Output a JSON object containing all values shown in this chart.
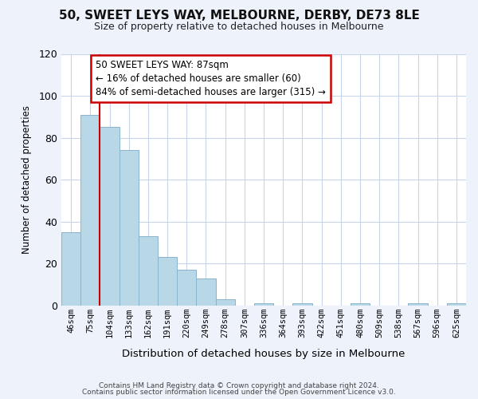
{
  "title": "50, SWEET LEYS WAY, MELBOURNE, DERBY, DE73 8LE",
  "subtitle": "Size of property relative to detached houses in Melbourne",
  "xlabel": "Distribution of detached houses by size in Melbourne",
  "ylabel": "Number of detached properties",
  "bin_labels": [
    "46sqm",
    "75sqm",
    "104sqm",
    "133sqm",
    "162sqm",
    "191sqm",
    "220sqm",
    "249sqm",
    "278sqm",
    "307sqm",
    "336sqm",
    "364sqm",
    "393sqm",
    "422sqm",
    "451sqm",
    "480sqm",
    "509sqm",
    "538sqm",
    "567sqm",
    "596sqm",
    "625sqm"
  ],
  "bar_values": [
    35,
    91,
    85,
    74,
    33,
    23,
    17,
    13,
    3,
    0,
    1,
    0,
    1,
    0,
    0,
    1,
    0,
    0,
    1,
    0,
    1
  ],
  "bar_color": "#b8d8e8",
  "bar_edge_color": "#8ab4cc",
  "marker_line_color": "#cc0000",
  "annotation_line1": "50 SWEET LEYS WAY: 87sqm",
  "annotation_line2": "← 16% of detached houses are smaller (60)",
  "annotation_line3": "84% of semi-detached houses are larger (315) →",
  "annotation_box_color": "#ffffff",
  "annotation_box_edge": "#cc0000",
  "ylim": [
    0,
    120
  ],
  "yticks": [
    0,
    20,
    40,
    60,
    80,
    100,
    120
  ],
  "footer1": "Contains HM Land Registry data © Crown copyright and database right 2024.",
  "footer2": "Contains public sector information licensed under the Open Government Licence v3.0.",
  "bg_color": "#eef2fb",
  "plot_bg_color": "#ffffff",
  "grid_color": "#c8d4e8"
}
